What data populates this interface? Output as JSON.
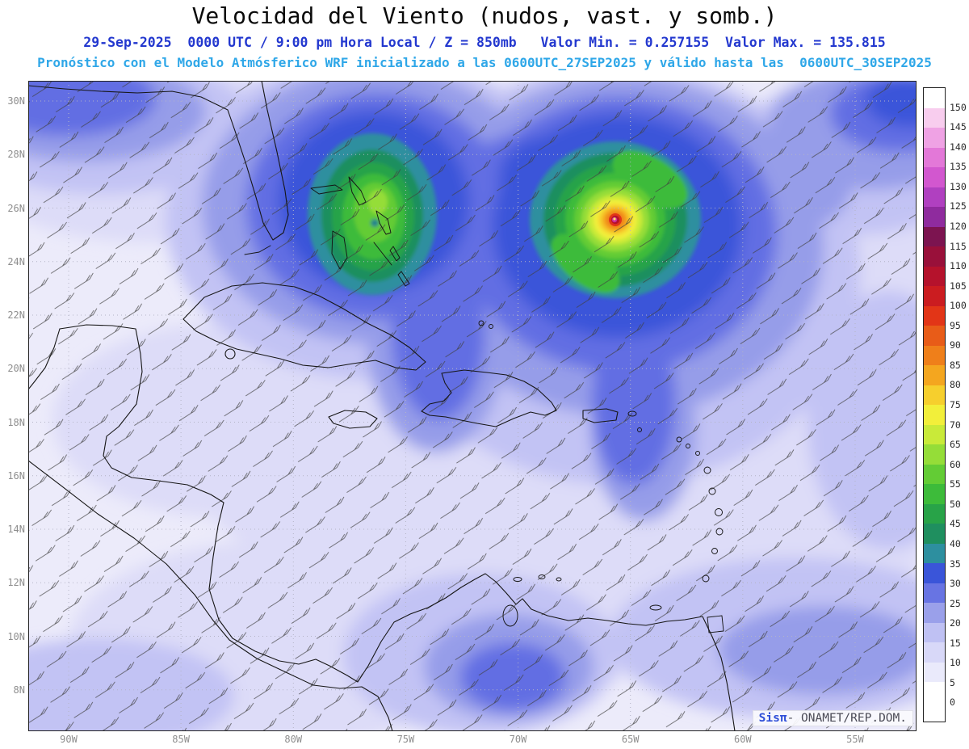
{
  "header": {
    "title": "Velocidad del Viento (nudos, vast. y somb.)",
    "subtitle_time": "29-Sep-2025  0000 UTC / 9:00 pm Hora Local / Z = 850mb   Valor Min. = 0.257155  Valor Max. = 135.815",
    "subtitle_model": "Pronóstico con el Modelo Atmósferico WRF inicializado a las 0600UTC_27SEP2025 y válido hasta las  0600UTC_30SEP2025"
  },
  "chart_data": {
    "type": "heatmap",
    "title": "Velocidad del Viento (nudos, vast. y somb.)",
    "variable": "wind_speed",
    "units": "nudos",
    "level": "850mb",
    "valid_time": "29-Sep-2025 0000 UTC / 9:00 pm Hora Local",
    "value_min": 0.257155,
    "value_max": 135.815,
    "model": "WRF",
    "initialized": "0600UTC_27SEP2025",
    "valid_until": "0600UTC_30SEP2025",
    "legend_position": "right",
    "grid": true,
    "x_ticks": [
      "90W",
      "85W",
      "80W",
      "75W",
      "70W",
      "65W",
      "60W",
      "55W"
    ],
    "y_ticks": [
      "30N",
      "28N",
      "26N",
      "24N",
      "22N",
      "20N",
      "18N",
      "16N",
      "14N",
      "12N",
      "10N",
      "8N"
    ],
    "colorbar_levels": [
      0,
      5,
      10,
      15,
      20,
      25,
      30,
      35,
      40,
      45,
      50,
      55,
      60,
      65,
      70,
      75,
      80,
      85,
      90,
      95,
      100,
      105,
      110,
      115,
      120,
      125,
      130,
      135,
      140,
      145,
      150
    ],
    "colorbar_colors": [
      "#ffffff",
      "#eaeafb",
      "#d8d8f8",
      "#bfc1f3",
      "#9aa0ea",
      "#6874e3",
      "#3a55d9",
      "#2d8f9f",
      "#1f8f5f",
      "#28a348",
      "#3dbb3a",
      "#63cc35",
      "#95dd38",
      "#c9ea39",
      "#f2ef3a",
      "#f6cf2d",
      "#f4a61f",
      "#ef7f1a",
      "#e85c18",
      "#e23517",
      "#cb1c20",
      "#b5122c",
      "#99103a",
      "#7c1450",
      "#8f2b9e",
      "#b040c0",
      "#d257cf",
      "#e378d8",
      "#efa2e4",
      "#f8cdee"
    ],
    "features": [
      {
        "name": "hurricane",
        "approx_location": "65.7W, 25.6N",
        "max_shading_kt": 135
      },
      {
        "name": "tropical-system-bahamas",
        "approx_location": "77W, 26.3N",
        "max_shading_kt": 65
      }
    ]
  },
  "watermark": {
    "brand": "Sisπ",
    "text": "- ONAMET/REP.DOM."
  }
}
